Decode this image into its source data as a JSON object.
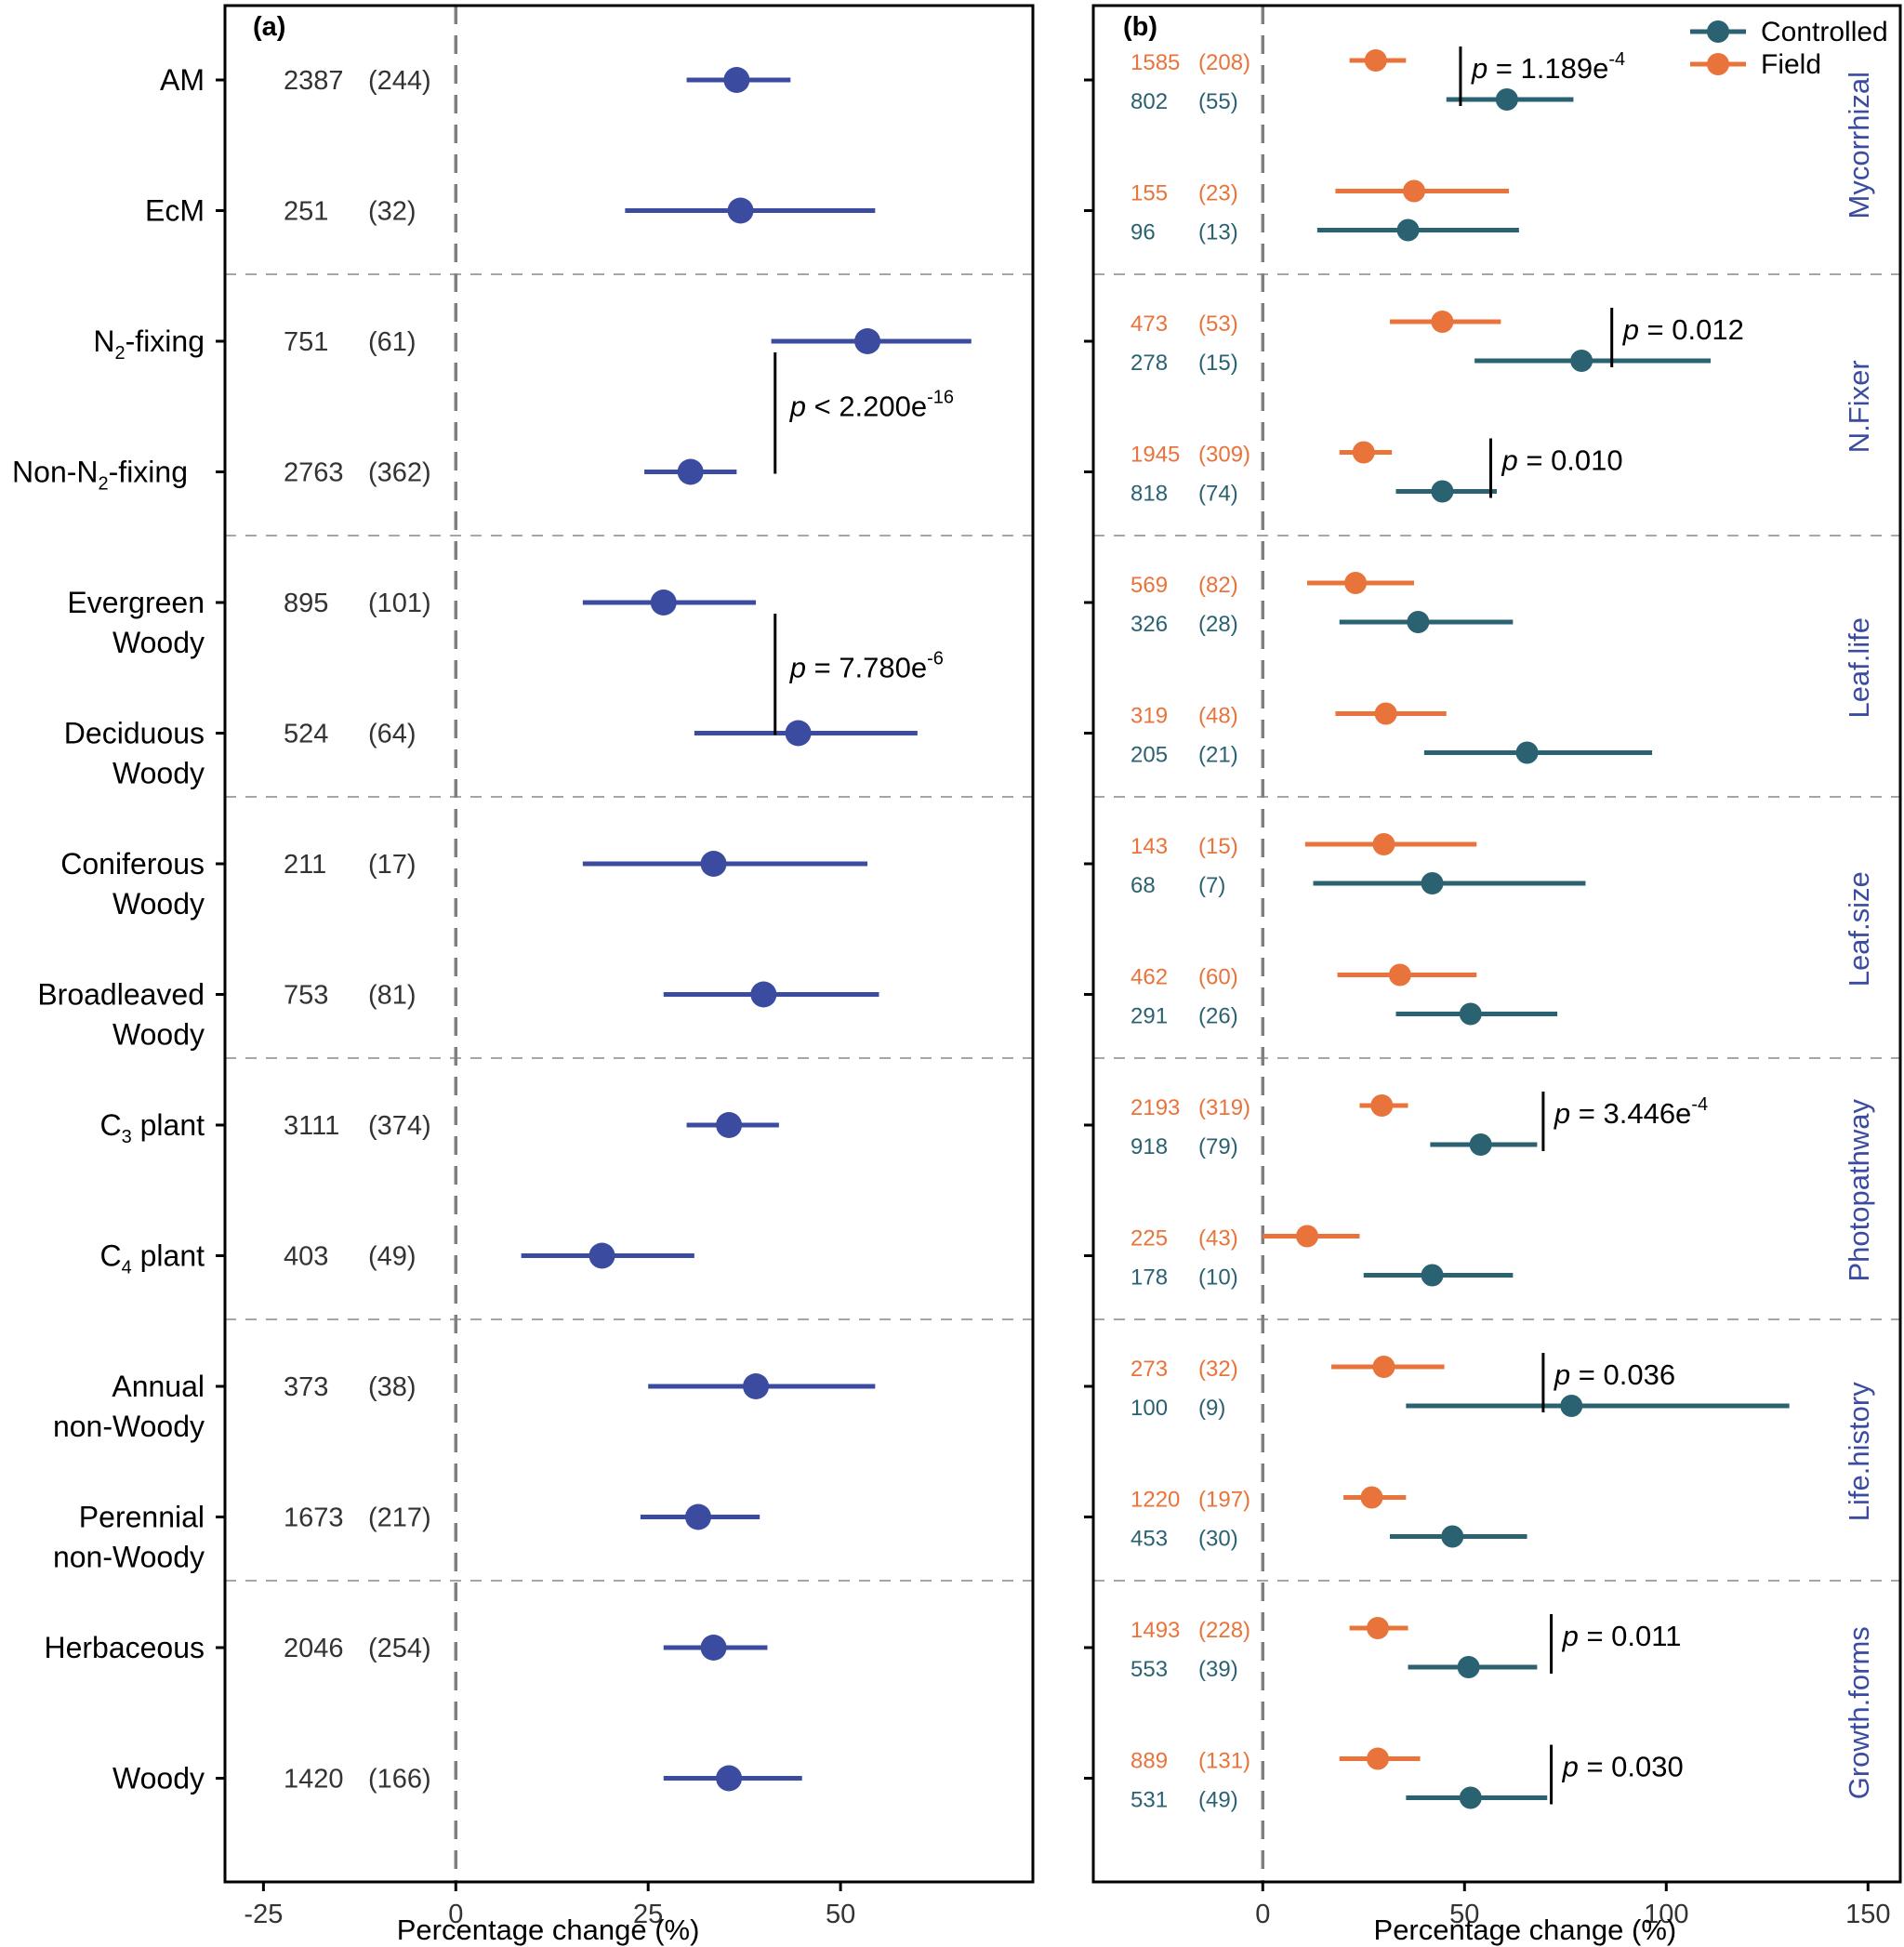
{
  "colors": {
    "panel_a_series": "#3b4ba0",
    "controlled": "#2b6272",
    "field": "#e8743b",
    "axis": "#000000",
    "ref_line": "#808080",
    "sep_line": "#a6a6a6",
    "group_label": "#3b4ba0"
  },
  "chart_data": [
    {
      "type": "forest",
      "panel_label": "(a)",
      "xlabel": "Percentage change (%)",
      "xlim": [
        -30,
        75
      ],
      "xticks": [
        -25,
        0,
        25,
        50
      ],
      "xtick_labels": [
        "-25",
        "0",
        "25",
        "50"
      ],
      "reference_line": 0,
      "rows": [
        {
          "label": [
            "AM"
          ],
          "n": "2387",
          "k": "(244)",
          "mean": 36.5,
          "low": 30.0,
          "high": 43.5
        },
        {
          "label": [
            "EcM"
          ],
          "n": "251",
          "k": "(32)",
          "mean": 37.0,
          "low": 22.0,
          "high": 54.5
        },
        {
          "label": [
            "N2-fixing"
          ],
          "label_sub": "2",
          "n": "751",
          "k": "(61)",
          "mean": 53.5,
          "low": 41.0,
          "high": 67.0
        },
        {
          "label": [
            "Non-N2-fixing"
          ],
          "label_sub": "2",
          "n": "2763",
          "k": "(362)",
          "mean": 30.5,
          "low": 24.5,
          "high": 36.5
        },
        {
          "label": [
            "Evergreen",
            "Woody"
          ],
          "n": "895",
          "k": "(101)",
          "mean": 27.0,
          "low": 16.5,
          "high": 39.0
        },
        {
          "label": [
            "Deciduous",
            "Woody"
          ],
          "n": "524",
          "k": "(64)",
          "mean": 44.5,
          "low": 31.0,
          "high": 60.0
        },
        {
          "label": [
            "Coniferous",
            "Woody"
          ],
          "n": "211",
          "k": "(17)",
          "mean": 33.5,
          "low": 16.5,
          "high": 53.5
        },
        {
          "label": [
            "Broadleaved",
            "Woody"
          ],
          "n": "753",
          "k": "(81)",
          "mean": 40.0,
          "low": 27.0,
          "high": 55.0
        },
        {
          "label": [
            "C3 plant"
          ],
          "label_sub": "3",
          "n": "3111",
          "k": "(374)",
          "mean": 35.5,
          "low": 30.0,
          "high": 42.0
        },
        {
          "label": [
            "C4 plant"
          ],
          "label_sub": "4",
          "n": "403",
          "k": "(49)",
          "mean": 19.0,
          "low": 8.5,
          "high": 31.0
        },
        {
          "label": [
            "Annual",
            "non-Woody"
          ],
          "n": "373",
          "k": "(38)",
          "mean": 39.0,
          "low": 25.0,
          "high": 54.5
        },
        {
          "label": [
            "Perennial",
            "non-Woody"
          ],
          "n": "1673",
          "k": "(217)",
          "mean": 31.5,
          "low": 24.0,
          "high": 39.5
        },
        {
          "label": [
            "Herbaceous"
          ],
          "n": "2046",
          "k": "(254)",
          "mean": 33.5,
          "low": 27.0,
          "high": 40.5
        },
        {
          "label": [
            "Woody"
          ],
          "n": "1420",
          "k": "(166)",
          "mean": 35.5,
          "low": 27.0,
          "high": 45.0
        }
      ],
      "annotations": [
        {
          "text": "p < 2.200e-16",
          "p_text": "p",
          "rest": " < 2.200e",
          "exp": "-16",
          "rows": [
            2,
            3
          ]
        },
        {
          "text": "p = 7.780e-6",
          "p_text": "p",
          "rest": " = 7.780e",
          "exp": "-6",
          "rows": [
            4,
            5
          ]
        }
      ]
    },
    {
      "type": "forest",
      "panel_label": "(b)",
      "xlabel": "Percentage change (%)",
      "xlim": [
        -42,
        158
      ],
      "xticks": [
        0,
        50,
        100,
        150
      ],
      "xtick_labels": [
        "0",
        "50",
        "100",
        "150"
      ],
      "reference_line": 0,
      "legend": {
        "position": "top-right",
        "entries": [
          "Controlled",
          "Field"
        ]
      },
      "groups": [
        "Mycorrhizal",
        "N.Fixer",
        "Leaf.life",
        "Leaf.size",
        "Photopathway",
        "Life.history",
        "Growth.forms"
      ],
      "series": [
        {
          "name": "Field",
          "rows": [
            {
              "n": "1585",
              "k": "(208)",
              "mean": 28.0,
              "low": 21.5,
              "high": 35.5
            },
            {
              "n": "155",
              "k": "(23)",
              "mean": 37.5,
              "low": 18.0,
              "high": 61.0
            },
            {
              "n": "473",
              "k": "(53)",
              "mean": 44.5,
              "low": 31.5,
              "high": 59.0
            },
            {
              "n": "1945",
              "k": "(309)",
              "mean": 25.0,
              "low": 19.0,
              "high": 32.0
            },
            {
              "n": "569",
              "k": "(82)",
              "mean": 23.0,
              "low": 11.0,
              "high": 37.5
            },
            {
              "n": "319",
              "k": "(48)",
              "mean": 30.5,
              "low": 18.0,
              "high": 45.5
            },
            {
              "n": "143",
              "k": "(15)",
              "mean": 30.0,
              "low": 10.5,
              "high": 53.0
            },
            {
              "n": "462",
              "k": "(60)",
              "mean": 34.0,
              "low": 18.5,
              "high": 53.0
            },
            {
              "n": "2193",
              "k": "(319)",
              "mean": 29.5,
              "low": 24.0,
              "high": 36.0
            },
            {
              "n": "225",
              "k": "(43)",
              "mean": 11.0,
              "low": 0.0,
              "high": 24.0
            },
            {
              "n": "273",
              "k": "(32)",
              "mean": 30.0,
              "low": 17.0,
              "high": 45.0
            },
            {
              "n": "1220",
              "k": "(197)",
              "mean": 27.0,
              "low": 20.0,
              "high": 35.5
            },
            {
              "n": "1493",
              "k": "(228)",
              "mean": 28.5,
              "low": 21.5,
              "high": 36.0
            },
            {
              "n": "889",
              "k": "(131)",
              "mean": 28.5,
              "low": 19.0,
              "high": 39.0
            }
          ]
        },
        {
          "name": "Controlled",
          "rows": [
            {
              "n": "802",
              "k": "(55)",
              "mean": 60.5,
              "low": 45.5,
              "high": 77.0
            },
            {
              "n": "96",
              "k": "(13)",
              "mean": 36.0,
              "low": 13.5,
              "high": 63.5
            },
            {
              "n": "278",
              "k": "(15)",
              "mean": 79.0,
              "low": 52.5,
              "high": 111.0
            },
            {
              "n": "818",
              "k": "(74)",
              "mean": 44.5,
              "low": 33.0,
              "high": 58.0
            },
            {
              "n": "326",
              "k": "(28)",
              "mean": 38.5,
              "low": 19.0,
              "high": 62.0
            },
            {
              "n": "205",
              "k": "(21)",
              "mean": 65.5,
              "low": 40.0,
              "high": 96.5
            },
            {
              "n": "68",
              "k": "(7)",
              "mean": 42.0,
              "low": 12.5,
              "high": 80.0
            },
            {
              "n": "291",
              "k": "(26)",
              "mean": 51.5,
              "low": 33.0,
              "high": 73.0
            },
            {
              "n": "918",
              "k": "(79)",
              "mean": 54.0,
              "low": 41.5,
              "high": 68.0
            },
            {
              "n": "178",
              "k": "(10)",
              "mean": 42.0,
              "low": 25.0,
              "high": 62.0
            },
            {
              "n": "100",
              "k": "(9)",
              "mean": 76.5,
              "low": 35.5,
              "high": 130.5
            },
            {
              "n": "453",
              "k": "(30)",
              "mean": 47.0,
              "low": 31.5,
              "high": 65.5
            },
            {
              "n": "553",
              "k": "(39)",
              "mean": 51.0,
              "low": 36.0,
              "high": 68.0
            },
            {
              "n": "531",
              "k": "(49)",
              "mean": 51.5,
              "low": 35.5,
              "high": 70.5
            }
          ]
        }
      ],
      "annotations": [
        {
          "text": "p = 1.189e-4",
          "p_text": "p",
          "rest": " = 1.189e",
          "exp": "-4",
          "row": 0,
          "x": 49
        },
        {
          "text": "p = 0.012",
          "p_text": "p",
          "rest": " = 0.012",
          "exp": "",
          "row": 2,
          "x": 86.5
        },
        {
          "text": "p = 0.010",
          "p_text": "p",
          "rest": " = 0.010",
          "exp": "",
          "row": 3,
          "x": 56.5
        },
        {
          "text": "p = 3.446e-4",
          "p_text": "p",
          "rest": " = 3.446e",
          "exp": "-4",
          "row": 8,
          "x": 69.5
        },
        {
          "text": "p = 0.036",
          "p_text": "p",
          "rest": " = 0.036",
          "exp": "",
          "row": 10,
          "x": 69.5
        },
        {
          "text": "p = 0.011",
          "p_text": "p",
          "rest": " = 0.011",
          "exp": "",
          "row": 12,
          "x": 71.5
        },
        {
          "text": "p = 0.030",
          "p_text": "p",
          "rest": " = 0.030",
          "exp": "",
          "row": 13,
          "x": 71.5
        }
      ]
    }
  ]
}
